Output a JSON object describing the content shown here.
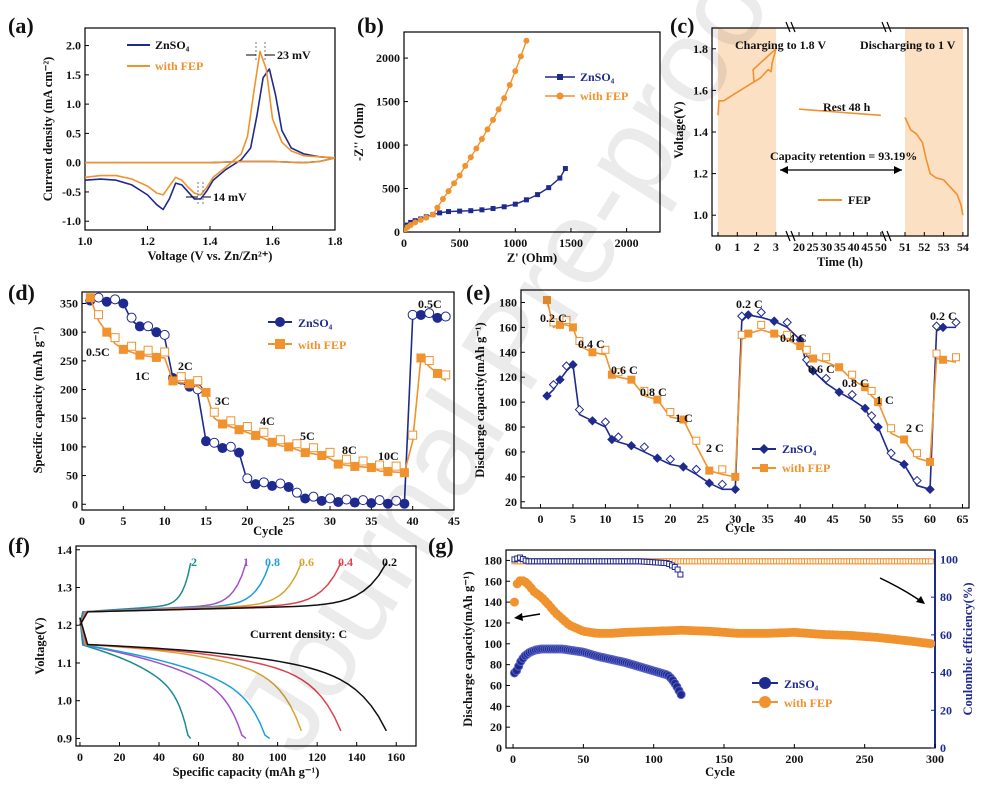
{
  "colors": {
    "zn": "#1f2a8f",
    "fep": "#f0922e",
    "shade": "#fbe0c4",
    "cyc": [
      "#1a8c8c",
      "#a34fcf",
      "#1f9fd9",
      "#d6a531",
      "#e0434a",
      "#111111"
    ]
  },
  "watermark": "Journal Pre-proof",
  "chart_data": [
    {
      "panel": "(a)",
      "type": "line",
      "xlabel": "Voltage (V vs. Zn/Zn²⁺)",
      "ylabel": "Current density (mA cm⁻²)",
      "xlim": [
        1.0,
        1.8
      ],
      "ylim": [
        -1.15,
        2.3
      ],
      "xticks": [
        "1.0",
        "1.2",
        "1.4",
        "1.6",
        "1.8"
      ],
      "yticks": [
        "-1.0",
        "-0.5",
        "0.0",
        "0.5",
        "1.0",
        "1.5",
        "2.0"
      ],
      "legend": [
        "ZnSO₄",
        "with FEP"
      ],
      "annotations": [
        "23 mV",
        "14 mV"
      ],
      "series": [
        {
          "name": "ZnSO₄",
          "x": [
            1.0,
            1.05,
            1.1,
            1.15,
            1.2,
            1.23,
            1.25,
            1.27,
            1.29,
            1.31,
            1.33,
            1.35,
            1.37,
            1.39,
            1.41,
            1.45,
            1.5,
            1.53,
            1.55,
            1.57,
            1.59,
            1.61,
            1.63,
            1.66,
            1.7,
            1.75,
            1.8,
            1.75,
            1.7,
            1.6,
            1.5,
            1.4,
            1.3,
            1.2,
            1.1,
            1.0
          ],
          "y": [
            -0.3,
            -0.28,
            -0.3,
            -0.38,
            -0.55,
            -0.72,
            -0.8,
            -0.62,
            -0.35,
            -0.38,
            -0.5,
            -0.62,
            -0.62,
            -0.48,
            -0.3,
            -0.12,
            0.05,
            0.25,
            0.8,
            1.45,
            1.6,
            1.15,
            0.55,
            0.25,
            0.15,
            0.1,
            0.08,
            0.02,
            0.0,
            0.02,
            0.02,
            0.0,
            0.0,
            0.0,
            0.0,
            0.0
          ]
        },
        {
          "name": "with FEP",
          "x": [
            1.0,
            1.05,
            1.1,
            1.15,
            1.2,
            1.23,
            1.25,
            1.27,
            1.29,
            1.31,
            1.33,
            1.35,
            1.37,
            1.39,
            1.41,
            1.45,
            1.5,
            1.52,
            1.54,
            1.56,
            1.58,
            1.6,
            1.63,
            1.66,
            1.7,
            1.75,
            1.8,
            1.75,
            1.7,
            1.6,
            1.5,
            1.4,
            1.3,
            1.2,
            1.1,
            1.0
          ],
          "y": [
            -0.25,
            -0.22,
            -0.22,
            -0.28,
            -0.4,
            -0.52,
            -0.55,
            -0.4,
            -0.25,
            -0.3,
            -0.42,
            -0.52,
            -0.55,
            -0.42,
            -0.25,
            -0.08,
            0.15,
            0.45,
            1.2,
            1.9,
            1.6,
            0.75,
            0.35,
            0.2,
            0.12,
            0.1,
            0.08,
            0.02,
            0.0,
            0.02,
            0.02,
            0.0,
            0.0,
            0.0,
            0.0,
            0.0
          ]
        }
      ]
    },
    {
      "panel": "(b)",
      "type": "line",
      "xlabel": "Z' (Ohm)",
      "ylabel": "-Z'' (Ohm)",
      "xlim": [
        0,
        2300
      ],
      "ylim": [
        0,
        2300
      ],
      "xticks": [
        "0",
        "500",
        "1000",
        "1500",
        "2000"
      ],
      "yticks": [
        "0",
        "500",
        "1000",
        "1500",
        "2000"
      ],
      "legend": [
        "ZnSO₄",
        "with FEP"
      ],
      "series": [
        {
          "name": "ZnSO₄",
          "x": [
            5,
            30,
            60,
            100,
            150,
            200,
            260,
            320,
            400,
            500,
            600,
            700,
            800,
            900,
            1000,
            1100,
            1200,
            1300,
            1400,
            1450
          ],
          "y": [
            15,
            80,
            110,
            130,
            150,
            175,
            200,
            220,
            235,
            240,
            245,
            255,
            270,
            290,
            320,
            370,
            430,
            510,
            620,
            730
          ]
        },
        {
          "name": "with FEP",
          "x": [
            5,
            30,
            60,
            100,
            150,
            200,
            260,
            300,
            350,
            400,
            450,
            500,
            550,
            600,
            650,
            700,
            750,
            800,
            850,
            900,
            950,
            1000,
            1050,
            1100
          ],
          "y": [
            15,
            55,
            80,
            110,
            140,
            165,
            200,
            280,
            380,
            470,
            560,
            650,
            760,
            860,
            960,
            1070,
            1180,
            1290,
            1410,
            1540,
            1690,
            1850,
            2020,
            2200
          ]
        }
      ]
    },
    {
      "panel": "(c)",
      "type": "line",
      "xlabel": "Time (h)",
      "ylabel": "Voltage(V)",
      "ylim": [
        0.9,
        1.9
      ],
      "xticks": [
        "0",
        "1",
        "2",
        "3",
        "20",
        "25",
        "30",
        "35",
        "40",
        "45",
        "50",
        "51",
        "52",
        "53",
        "54"
      ],
      "yticks": [
        "1.0",
        "1.2",
        "1.4",
        "1.6",
        "1.8"
      ],
      "annotations": [
        "Charging to 1.8 V",
        "Discharging to 1 V",
        "Rest 48 h",
        "Capacity retention = 93.19%"
      ],
      "legend": [
        "FEP"
      ],
      "series": [
        {
          "name": "FEP",
          "x": [
            0,
            0.05,
            0.3,
            0.8,
            1.5,
            2.2,
            2.6,
            2.75,
            2.8,
            2.95,
            3.0,
            3.2,
            3.5
          ],
          "y": [
            1.48,
            1.55,
            1.55,
            1.58,
            1.62,
            1.66,
            1.7,
            1.69,
            1.73,
            1.78,
            1.8,
            1.7,
            1.64
          ]
        },
        {
          "name": "FEP rest",
          "x": [
            20,
            25,
            30,
            35,
            40,
            45,
            50
          ],
          "y": [
            1.51,
            1.505,
            1.5,
            1.495,
            1.49,
            1.485,
            1.48
          ]
        },
        {
          "name": "FEP discharge",
          "x": [
            51,
            51.1,
            51.3,
            51.6,
            51.9,
            52.1,
            52.3,
            52.6,
            53,
            53.4,
            53.7,
            53.9,
            54
          ],
          "y": [
            1.47,
            1.45,
            1.41,
            1.39,
            1.35,
            1.27,
            1.2,
            1.18,
            1.17,
            1.13,
            1.1,
            1.05,
            1.0
          ]
        }
      ]
    },
    {
      "panel": "(d)",
      "type": "line",
      "xlabel": "Cycle",
      "ylabel": "Specific capacity (mAh g⁻¹)",
      "xlim": [
        0,
        45
      ],
      "ylim": [
        -10,
        370
      ],
      "xticks": [
        "0",
        "5",
        "10",
        "15",
        "20",
        "25",
        "30",
        "35",
        "40",
        "45"
      ],
      "yticks": [
        "0",
        "50",
        "100",
        "150",
        "200",
        "250",
        "300",
        "350"
      ],
      "legend": [
        "ZnSO₄",
        "with FEP"
      ],
      "rates": [
        "0.5C",
        "1C",
        "2C",
        "3C",
        "4C",
        "5C",
        "8C",
        "10C",
        "0.5C"
      ],
      "series": [
        {
          "name": "ZnSO₄",
          "x": [
            1,
            2,
            3,
            4,
            5,
            6,
            7,
            8,
            9,
            10,
            11,
            12,
            13,
            14,
            15,
            16,
            17,
            18,
            19,
            20,
            21,
            22,
            23,
            24,
            25,
            26,
            27,
            28,
            29,
            30,
            31,
            32,
            33,
            34,
            35,
            36,
            37,
            38,
            39,
            40,
            41,
            42,
            43,
            44
          ],
          "y": [
            355,
            355,
            353,
            352,
            350,
            320,
            310,
            305,
            300,
            290,
            220,
            212,
            205,
            195,
            110,
            102,
            98,
            95,
            90,
            40,
            35,
            33,
            32,
            31,
            30,
            15,
            10,
            8,
            6,
            5,
            4,
            3,
            3,
            2,
            2,
            2,
            1,
            1,
            1,
            325,
            330,
            328,
            325,
            322
          ]
        },
        {
          "name": "with FEP",
          "x": [
            1,
            2,
            3,
            4,
            5,
            6,
            7,
            8,
            9,
            10,
            11,
            12,
            13,
            14,
            15,
            16,
            17,
            18,
            19,
            20,
            21,
            22,
            23,
            24,
            25,
            26,
            27,
            28,
            29,
            30,
            31,
            32,
            33,
            34,
            35,
            36,
            37,
            38,
            39,
            40,
            41,
            42,
            43,
            44
          ],
          "y": [
            360,
            320,
            300,
            280,
            270,
            265,
            260,
            258,
            256,
            255,
            215,
            212,
            210,
            205,
            195,
            150,
            140,
            135,
            130,
            125,
            120,
            115,
            108,
            102,
            100,
            95,
            90,
            88,
            85,
            80,
            70,
            68,
            66,
            65,
            64,
            58,
            57,
            56,
            55,
            110,
            255,
            240,
            228,
            215
          ]
        }
      ]
    },
    {
      "panel": "(e)",
      "type": "line",
      "xlabel": "Cycle",
      "ylabel": "Discharge capacity(mAh g⁻¹)",
      "xlim": [
        -3,
        66
      ],
      "ylim": [
        15,
        190
      ],
      "xticks": [
        "0",
        "5",
        "10",
        "15",
        "20",
        "25",
        "30",
        "35",
        "40",
        "45",
        "50",
        "55",
        "60",
        "65"
      ],
      "yticks": [
        "20",
        "40",
        "60",
        "80",
        "100",
        "120",
        "140",
        "160",
        "180"
      ],
      "legend": [
        "ZnSO₄",
        "with FEP"
      ],
      "rates": [
        "0.2 C",
        "0.4 C",
        "0.6 C",
        "0.8 C",
        "1 C",
        "2 C",
        "0.2 C",
        "0.4 C",
        "0.6 C",
        "0.8 C",
        "1 C",
        "2 C",
        "0.2 C"
      ],
      "series": [
        {
          "name": "ZnSO₄",
          "x": [
            1,
            2,
            3,
            4,
            5,
            6,
            8,
            10,
            11,
            12,
            14,
            16,
            18,
            20,
            22,
            24,
            26,
            28,
            30,
            31,
            32,
            34,
            36,
            38,
            40,
            41,
            42,
            44,
            46,
            48,
            50,
            51,
            52,
            54,
            56,
            58,
            60,
            61,
            62,
            64
          ],
          "y": [
            105,
            110,
            118,
            125,
            130,
            90,
            85,
            80,
            70,
            68,
            65,
            60,
            55,
            50,
            48,
            42,
            35,
            30,
            30,
            165,
            170,
            168,
            165,
            160,
            150,
            130,
            125,
            115,
            108,
            102,
            95,
            85,
            80,
            55,
            50,
            33,
            30,
            157,
            160,
            160
          ]
        },
        {
          "name": "with FEP",
          "x": [
            1,
            2,
            3,
            4,
            5,
            6,
            8,
            10,
            11,
            12,
            14,
            16,
            18,
            20,
            22,
            24,
            26,
            28,
            30,
            31,
            32,
            34,
            36,
            38,
            40,
            41,
            42,
            44,
            46,
            48,
            50,
            51,
            52,
            54,
            56,
            58,
            60,
            61,
            62,
            64
          ],
          "y": [
            182,
            160,
            162,
            162,
            160,
            145,
            140,
            138,
            122,
            120,
            118,
            105,
            102,
            88,
            86,
            65,
            45,
            42,
            40,
            150,
            155,
            158,
            155,
            150,
            145,
            138,
            135,
            132,
            128,
            118,
            112,
            105,
            100,
            75,
            70,
            55,
            52,
            135,
            134,
            132
          ]
        }
      ]
    },
    {
      "panel": "(f)",
      "type": "line",
      "xlabel": "Specific capacity (mAh g⁻¹)",
      "ylabel": "Voltage(V)",
      "xlim": [
        -2,
        170
      ],
      "ylim": [
        0.88,
        1.41
      ],
      "xticks": [
        "0",
        "20",
        "40",
        "60",
        "80",
        "100",
        "120",
        "140",
        "160"
      ],
      "yticks": [
        "0.9",
        "1.0",
        "1.1",
        "1.2",
        "1.3",
        "1.4"
      ],
      "legend_title": "Current density: C",
      "curve_labels": [
        "2",
        "1",
        "0.8",
        "0.6",
        "0.4",
        "0.2"
      ],
      "end_caps": [
        56,
        84,
        96,
        112,
        132,
        155
      ]
    },
    {
      "panel": "(g)",
      "type": "line",
      "xlabel": "Cycle",
      "ylabel": "Discharge capacity(mAh g⁻¹)",
      "y2label": "Coulombic efficiency(%)",
      "xlim": [
        -5,
        300
      ],
      "ylim": [
        0,
        190
      ],
      "y2lim": [
        0,
        105
      ],
      "xticks": [
        "0",
        "50",
        "100",
        "150",
        "200",
        "250",
        "300"
      ],
      "yticks": [
        "0",
        "20",
        "40",
        "60",
        "80",
        "100",
        "120",
        "140",
        "160",
        "180"
      ],
      "y2ticks": [
        "0",
        "20",
        "40",
        "60",
        "80",
        "100"
      ],
      "legend": [
        "ZnSO₄",
        "with FEP"
      ],
      "series": [
        {
          "name": "ZnSO₄",
          "x": [
            1,
            3,
            5,
            8,
            12,
            16,
            20,
            25,
            30,
            35,
            40,
            50,
            60,
            70,
            80,
            90,
            100,
            105,
            110,
            113,
            116,
            118,
            120
          ],
          "y": [
            72,
            75,
            82,
            88,
            92,
            94,
            95,
            95,
            95,
            95,
            94,
            92,
            88,
            85,
            82,
            78,
            74,
            72,
            70,
            66,
            60,
            55,
            50
          ]
        },
        {
          "name": "with FEP",
          "x": [
            1,
            2,
            4,
            6,
            8,
            10,
            12,
            15,
            20,
            25,
            30,
            35,
            40,
            45,
            50,
            60,
            70,
            80,
            100,
            120,
            140,
            160,
            180,
            200,
            220,
            240,
            260,
            280,
            298
          ],
          "y": [
            140,
            155,
            160,
            161,
            160,
            158,
            155,
            150,
            145,
            138,
            130,
            124,
            118,
            115,
            112,
            110,
            110,
            111,
            112,
            113,
            112,
            110,
            110,
            111,
            109,
            108,
            106,
            103,
            100
          ]
        },
        {
          "name": "ZnSO₄ CE",
          "x": [
            1,
            5,
            10,
            30,
            60,
            90,
            110,
            115,
            118,
            120
          ],
          "y": [
            100,
            101,
            99,
            99,
            99,
            99,
            98,
            96,
            94,
            90
          ]
        },
        {
          "name": "with FEP CE",
          "x": [
            1,
            5,
            10,
            50,
            100,
            150,
            200,
            250,
            298
          ],
          "y": [
            99,
            99,
            99,
            99,
            99,
            99,
            99,
            99,
            99
          ]
        }
      ]
    }
  ]
}
